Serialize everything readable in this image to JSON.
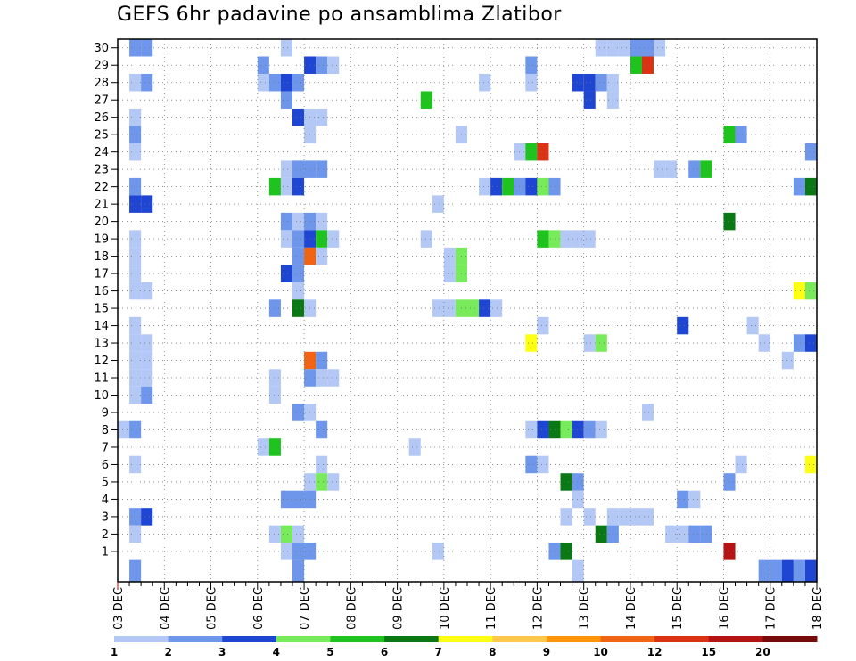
{
  "chart_data": {
    "type": "heatmap",
    "title": "GEFS 6hr padavine po ansamblima Zlatibor",
    "xlabel": "",
    "ylabel": "",
    "y_ticks": [
      "1",
      "2",
      "3",
      "4",
      "5",
      "6",
      "7",
      "8",
      "9",
      "10",
      "11",
      "12",
      "13",
      "14",
      "15",
      "16",
      "17",
      "18",
      "19",
      "20",
      "21",
      "22",
      "23",
      "24",
      "25",
      "26",
      "27",
      "28",
      "29",
      "30"
    ],
    "x_ticks": [
      "03 DEC",
      "04 DEC",
      "05 DEC",
      "06 DEC",
      "07 DEC",
      "08 DEC",
      "09 DEC",
      "10 DEC",
      "11 DEC",
      "12 DEC",
      "13 DEC",
      "14 DEC",
      "15 DEC",
      "16 DEC",
      "17 DEC",
      "18 DEC"
    ],
    "x_step_hours": 6,
    "xlim_steps": [
      0,
      60
    ],
    "ylim": [
      0,
      30
    ],
    "grid": true,
    "colorbar": {
      "ticks": [
        "1",
        "2",
        "3",
        "4",
        "5",
        "6",
        "7",
        "8",
        "9",
        "10",
        "12",
        "15",
        "20"
      ],
      "colors": [
        "#b4c8f5",
        "#6e96eb",
        "#1e46d2",
        "#78eb5a",
        "#1ec31e",
        "#0a7814",
        "#ffff14",
        "#ffc84b",
        "#ff960a",
        "#f06414",
        "#dc3214",
        "#b41414",
        "#780a0a"
      ]
    },
    "cells": [
      [
        30,
        1,
        2
      ],
      [
        30,
        2,
        2
      ],
      [
        30,
        14,
        1
      ],
      [
        30,
        41,
        1
      ],
      [
        30,
        42,
        1
      ],
      [
        30,
        43,
        1
      ],
      [
        30,
        44,
        2
      ],
      [
        30,
        45,
        2
      ],
      [
        30,
        46,
        1
      ],
      [
        29,
        12,
        2
      ],
      [
        29,
        16,
        3
      ],
      [
        29,
        17,
        2
      ],
      [
        29,
        18,
        1
      ],
      [
        29,
        35,
        2
      ],
      [
        29,
        44,
        5
      ],
      [
        29,
        45,
        11
      ],
      [
        28,
        1,
        1
      ],
      [
        28,
        2,
        2
      ],
      [
        28,
        12,
        1
      ],
      [
        28,
        13,
        2
      ],
      [
        28,
        14,
        3
      ],
      [
        28,
        15,
        2
      ],
      [
        28,
        31,
        1
      ],
      [
        28,
        35,
        1
      ],
      [
        28,
        39,
        3
      ],
      [
        28,
        40,
        3
      ],
      [
        28,
        41,
        2
      ],
      [
        28,
        42,
        1
      ],
      [
        27,
        14,
        2
      ],
      [
        27,
        26,
        5
      ],
      [
        27,
        40,
        3
      ],
      [
        27,
        42,
        1
      ],
      [
        26,
        1,
        1
      ],
      [
        26,
        15,
        3
      ],
      [
        26,
        16,
        1
      ],
      [
        26,
        17,
        1
      ],
      [
        25,
        1,
        2
      ],
      [
        25,
        16,
        1
      ],
      [
        25,
        29,
        1
      ],
      [
        25,
        52,
        5
      ],
      [
        25,
        53,
        2
      ],
      [
        24,
        1,
        1
      ],
      [
        24,
        34,
        1
      ],
      [
        24,
        35,
        5
      ],
      [
        24,
        36,
        11
      ],
      [
        24,
        59,
        2
      ],
      [
        23,
        14,
        1
      ],
      [
        23,
        15,
        2
      ],
      [
        23,
        16,
        2
      ],
      [
        23,
        17,
        2
      ],
      [
        23,
        46,
        1
      ],
      [
        23,
        47,
        1
      ],
      [
        23,
        49,
        2
      ],
      [
        23,
        50,
        5
      ],
      [
        22,
        1,
        2
      ],
      [
        22,
        13,
        5
      ],
      [
        22,
        14,
        1
      ],
      [
        22,
        15,
        3
      ],
      [
        22,
        31,
        1
      ],
      [
        22,
        32,
        3
      ],
      [
        22,
        33,
        5
      ],
      [
        22,
        34,
        2
      ],
      [
        22,
        35,
        3
      ],
      [
        22,
        36,
        4
      ],
      [
        22,
        37,
        2
      ],
      [
        22,
        58,
        2
      ],
      [
        22,
        59,
        6
      ],
      [
        21,
        1,
        3
      ],
      [
        21,
        2,
        3
      ],
      [
        21,
        27,
        1
      ],
      [
        20,
        14,
        2
      ],
      [
        20,
        15,
        1
      ],
      [
        20,
        16,
        2
      ],
      [
        20,
        17,
        1
      ],
      [
        20,
        52,
        6
      ],
      [
        19,
        1,
        1
      ],
      [
        19,
        14,
        1
      ],
      [
        19,
        15,
        2
      ],
      [
        19,
        16,
        3
      ],
      [
        19,
        17,
        5
      ],
      [
        19,
        18,
        1
      ],
      [
        19,
        26,
        1
      ],
      [
        19,
        36,
        5
      ],
      [
        19,
        37,
        4
      ],
      [
        19,
        38,
        1
      ],
      [
        19,
        39,
        1
      ],
      [
        19,
        40,
        1
      ],
      [
        18,
        1,
        1
      ],
      [
        18,
        15,
        2
      ],
      [
        18,
        16,
        10
      ],
      [
        18,
        17,
        1
      ],
      [
        18,
        28,
        1
      ],
      [
        18,
        29,
        4
      ],
      [
        17,
        1,
        1
      ],
      [
        17,
        14,
        3
      ],
      [
        17,
        15,
        2
      ],
      [
        17,
        28,
        1
      ],
      [
        17,
        29,
        4
      ],
      [
        16,
        1,
        1
      ],
      [
        16,
        2,
        1
      ],
      [
        16,
        15,
        1
      ],
      [
        16,
        58,
        7
      ],
      [
        16,
        59,
        4
      ],
      [
        15,
        13,
        2
      ],
      [
        15,
        15,
        6
      ],
      [
        15,
        16,
        1
      ],
      [
        15,
        27,
        1
      ],
      [
        15,
        28,
        1
      ],
      [
        15,
        29,
        4
      ],
      [
        15,
        30,
        4
      ],
      [
        15,
        31,
        3
      ],
      [
        15,
        32,
        1
      ],
      [
        14,
        1,
        1
      ],
      [
        14,
        36,
        1
      ],
      [
        14,
        48,
        3
      ],
      [
        14,
        54,
        1
      ],
      [
        13,
        1,
        1
      ],
      [
        13,
        2,
        1
      ],
      [
        13,
        35,
        7
      ],
      [
        13,
        40,
        1
      ],
      [
        13,
        41,
        4
      ],
      [
        13,
        55,
        1
      ],
      [
        13,
        58,
        2
      ],
      [
        13,
        59,
        3
      ],
      [
        12,
        1,
        1
      ],
      [
        12,
        2,
        1
      ],
      [
        12,
        16,
        10
      ],
      [
        12,
        17,
        2
      ],
      [
        12,
        57,
        1
      ],
      [
        11,
        1,
        1
      ],
      [
        11,
        2,
        1
      ],
      [
        11,
        13,
        1
      ],
      [
        11,
        16,
        2
      ],
      [
        11,
        17,
        1
      ],
      [
        11,
        18,
        1
      ],
      [
        10,
        1,
        1
      ],
      [
        10,
        2,
        2
      ],
      [
        10,
        13,
        1
      ],
      [
        9,
        15,
        2
      ],
      [
        9,
        16,
        1
      ],
      [
        9,
        45,
        1
      ],
      [
        8,
        0,
        1
      ],
      [
        8,
        1,
        2
      ],
      [
        8,
        17,
        2
      ],
      [
        8,
        35,
        1
      ],
      [
        8,
        36,
        3
      ],
      [
        8,
        37,
        6
      ],
      [
        8,
        38,
        4
      ],
      [
        8,
        39,
        3
      ],
      [
        8,
        40,
        2
      ],
      [
        8,
        41,
        1
      ],
      [
        7,
        12,
        1
      ],
      [
        7,
        13,
        5
      ],
      [
        7,
        25,
        1
      ],
      [
        6,
        1,
        1
      ],
      [
        6,
        17,
        1
      ],
      [
        6,
        35,
        2
      ],
      [
        6,
        36,
        1
      ],
      [
        6,
        53,
        1
      ],
      [
        6,
        59,
        7
      ],
      [
        5,
        16,
        1
      ],
      [
        5,
        17,
        4
      ],
      [
        5,
        18,
        1
      ],
      [
        5,
        38,
        6
      ],
      [
        5,
        39,
        2
      ],
      [
        5,
        52,
        2
      ],
      [
        4,
        14,
        2
      ],
      [
        4,
        15,
        2
      ],
      [
        4,
        16,
        2
      ],
      [
        4,
        39,
        1
      ],
      [
        4,
        48,
        2
      ],
      [
        4,
        49,
        1
      ],
      [
        3,
        1,
        2
      ],
      [
        3,
        2,
        3
      ],
      [
        3,
        38,
        1
      ],
      [
        3,
        40,
        1
      ],
      [
        3,
        42,
        1
      ],
      [
        3,
        43,
        1
      ],
      [
        3,
        44,
        1
      ],
      [
        3,
        45,
        1
      ],
      [
        2,
        1,
        1
      ],
      [
        2,
        13,
        1
      ],
      [
        2,
        14,
        4
      ],
      [
        2,
        15,
        1
      ],
      [
        2,
        41,
        6
      ],
      [
        2,
        42,
        2
      ],
      [
        2,
        47,
        1
      ],
      [
        2,
        48,
        1
      ],
      [
        2,
        49,
        2
      ],
      [
        2,
        50,
        2
      ],
      [
        1,
        14,
        1
      ],
      [
        1,
        15,
        2
      ],
      [
        1,
        16,
        2
      ],
      [
        1,
        27,
        1
      ],
      [
        1,
        37,
        2
      ],
      [
        1,
        38,
        6
      ],
      [
        1,
        52,
        12
      ],
      [
        0,
        1,
        2
      ],
      [
        0,
        15,
        2
      ],
      [
        0,
        58,
        1
      ],
      [
        0,
        59,
        3
      ],
      [
        -1,
        39,
        1
      ],
      [
        -1,
        55,
        2
      ],
      [
        -1,
        56,
        2
      ],
      [
        -1,
        57,
        3
      ],
      [
        -1,
        58,
        2
      ]
    ]
  }
}
